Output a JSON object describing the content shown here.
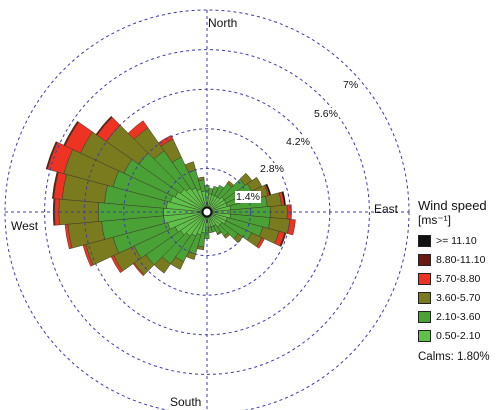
{
  "chart_data": {
    "type": "wind-rose",
    "directions": {
      "north": "North",
      "east": "East",
      "south": "South",
      "west": "West"
    },
    "ring_labels": [
      "1.4%",
      "2.8%",
      "4.2%",
      "5.6%",
      "7%"
    ],
    "ring_values": [
      1.4,
      2.8,
      4.2,
      5.6,
      7.0
    ],
    "sector_count": 36,
    "sector_width_deg": 10,
    "max_percent": 7.0,
    "legend": {
      "title": "Wind speed",
      "unit": "[ms⁻¹]",
      "placement": "right",
      "bins": [
        {
          "label": ">= 11.10",
          "color": "#111111"
        },
        {
          "label": "8.80-11.10",
          "color": "#6b1a10"
        },
        {
          "label": "5.70-8.80",
          "color": "#ee3322"
        },
        {
          "label": "3.60-5.70",
          "color": "#7a7a1e"
        },
        {
          "label": "2.10-3.60",
          "color": "#4aa236"
        },
        {
          "label": "0.50-2.10",
          "color": "#5fc04a"
        }
      ]
    },
    "calms_label": "Calms: 1.80%",
    "sectors": [
      {
        "dir": 0,
        "values": [
          0.6,
          0.2,
          0,
          0,
          0,
          0
        ]
      },
      {
        "dir": 10,
        "values": [
          0.5,
          0.2,
          0,
          0,
          0,
          0
        ]
      },
      {
        "dir": 20,
        "values": [
          0.5,
          0.3,
          0,
          0,
          0,
          0
        ]
      },
      {
        "dir": 30,
        "values": [
          0.5,
          0.4,
          0,
          0,
          0,
          0
        ]
      },
      {
        "dir": 40,
        "values": [
          0.5,
          0.6,
          0.1,
          0,
          0,
          0
        ]
      },
      {
        "dir": 50,
        "values": [
          0.6,
          0.9,
          0.3,
          0,
          0,
          0
        ]
      },
      {
        "dir": 60,
        "values": [
          0.6,
          1.0,
          0.4,
          0,
          0,
          0
        ]
      },
      {
        "dir": 70,
        "values": [
          0.6,
          1.1,
          0.4,
          0.05,
          0,
          0.05
        ]
      },
      {
        "dir": 80,
        "values": [
          0.7,
          1.3,
          0.5,
          0.1,
          0,
          0.05
        ]
      },
      {
        "dir": 90,
        "values": [
          0.7,
          1.4,
          0.6,
          0.15,
          0,
          0
        ]
      },
      {
        "dir": 100,
        "values": [
          0.7,
          1.4,
          0.7,
          0.2,
          0,
          0
        ]
      },
      {
        "dir": 110,
        "values": [
          0.6,
          1.3,
          0.6,
          0.2,
          0.05,
          0
        ]
      },
      {
        "dir": 120,
        "values": [
          0.6,
          1.0,
          0.4,
          0.1,
          0,
          0
        ]
      },
      {
        "dir": 130,
        "values": [
          0.5,
          0.7,
          0.2,
          0,
          0,
          0
        ]
      },
      {
        "dir": 140,
        "values": [
          0.5,
          0.4,
          0.1,
          0,
          0,
          0
        ]
      },
      {
        "dir": 150,
        "values": [
          0.4,
          0.3,
          0.05,
          0,
          0,
          0
        ]
      },
      {
        "dir": 160,
        "values": [
          0.4,
          0.2,
          0,
          0,
          0,
          0
        ]
      },
      {
        "dir": 170,
        "values": [
          0.4,
          0.2,
          0,
          0,
          0,
          0
        ]
      },
      {
        "dir": 180,
        "values": [
          0.5,
          0.3,
          0,
          0,
          0,
          0
        ]
      },
      {
        "dir": 190,
        "values": [
          0.6,
          0.5,
          0.1,
          0,
          0,
          0
        ]
      },
      {
        "dir": 200,
        "values": [
          0.7,
          0.7,
          0.2,
          0,
          0,
          0
        ]
      },
      {
        "dir": 210,
        "values": [
          0.8,
          1.0,
          0.3,
          0,
          0,
          0
        ]
      },
      {
        "dir": 220,
        "values": [
          0.9,
          1.2,
          0.4,
          0,
          0,
          0
        ]
      },
      {
        "dir": 230,
        "values": [
          1.0,
          1.5,
          0.5,
          0.05,
          0,
          0
        ]
      },
      {
        "dir": 240,
        "values": [
          1.1,
          1.6,
          0.8,
          0.1,
          0,
          0
        ]
      },
      {
        "dir": 250,
        "values": [
          1.3,
          2.0,
          1.0,
          0.1,
          0,
          0
        ]
      },
      {
        "dir": 260,
        "values": [
          1.4,
          2.2,
          1.2,
          0.1,
          0,
          0
        ]
      },
      {
        "dir": 270,
        "values": [
          1.4,
          2.3,
          1.4,
          0.15,
          0.05,
          0
        ]
      },
      {
        "dir": 280,
        "values": [
          1.3,
          2.2,
          1.5,
          0.3,
          0.05,
          0
        ]
      },
      {
        "dir": 290,
        "values": [
          1.2,
          2.1,
          1.8,
          0.6,
          0.05,
          0
        ]
      },
      {
        "dir": 300,
        "values": [
          1.1,
          2.0,
          1.7,
          0.6,
          0.05,
          0
        ]
      },
      {
        "dir": 310,
        "values": [
          1.0,
          1.8,
          1.4,
          0.4,
          0.05,
          0
        ]
      },
      {
        "dir": 320,
        "values": [
          0.9,
          1.6,
          1.0,
          0.3,
          0,
          0
        ]
      },
      {
        "dir": 330,
        "values": [
          0.8,
          1.2,
          0.7,
          0.15,
          0,
          0
        ]
      },
      {
        "dir": 340,
        "values": [
          0.7,
          0.7,
          0.3,
          0,
          0,
          0
        ]
      },
      {
        "dir": 350,
        "values": [
          0.6,
          0.4,
          0.1,
          0,
          0,
          0
        ]
      }
    ]
  }
}
